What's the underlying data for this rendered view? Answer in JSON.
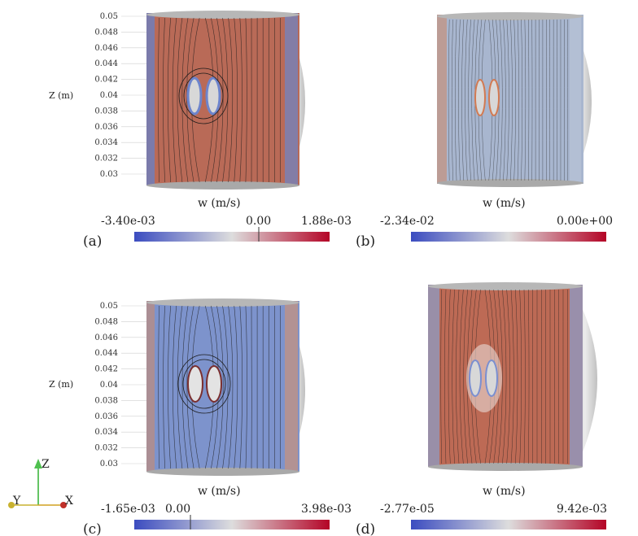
{
  "panels": [
    {
      "id": "a",
      "label": "(a)",
      "variable": "w (m/s)",
      "min_label": "-3.40e-03",
      "mid_label": "0.00",
      "max_label": "1.88e-03",
      "z_axis_title": "Z (m)",
      "z_ticks": [
        "0.05",
        "0.048",
        "0.046",
        "0.044",
        "0.042",
        "0.04",
        "0.038",
        "0.036",
        "0.034",
        "0.032",
        "0.03"
      ],
      "field_color": "#b96a57"
    },
    {
      "id": "b",
      "label": "(b)",
      "variable": "w (m/s)",
      "min_label": "-2.34e-02",
      "mid_label": "",
      "max_label": "0.00e+00",
      "field_color": "#a8b6cf"
    },
    {
      "id": "c",
      "label": "(c)",
      "variable": "w (m/s)",
      "min_label": "-1.65e-03",
      "mid_label": "0.00",
      "max_label": "3.98e-03",
      "z_axis_title": "Z (m)",
      "z_ticks": [
        "0.05",
        "0.048",
        "0.046",
        "0.044",
        "0.042",
        "0.04",
        "0.038",
        "0.036",
        "0.034",
        "0.032",
        "0.03"
      ],
      "field_color": "#7d93cc"
    },
    {
      "id": "d",
      "label": "(d)",
      "variable": "w (m/s)",
      "min_label": "-2.77e-05",
      "mid_label": "",
      "max_label": "9.42e-03",
      "field_color": "#bd6a55"
    }
  ],
  "axes_triad": {
    "z": "Z",
    "y": "Y",
    "x": "X"
  },
  "colors": {
    "cold": "#3b4cc0",
    "neutral": "#dddddd",
    "hot": "#b40426",
    "streamline": "#1a1a1a"
  }
}
